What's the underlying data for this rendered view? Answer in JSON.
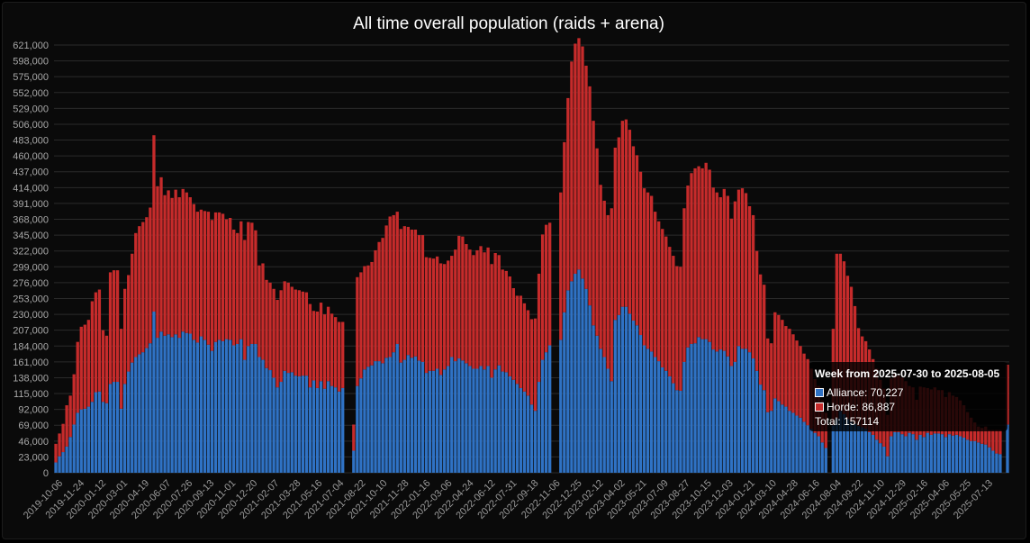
{
  "colors": {
    "background": "#0a0a0a",
    "alliance": "#2f72c4",
    "horde": "#c62b2b",
    "bar_border": "#000000",
    "text": "#ffffff",
    "tick_text": "#a8a8a8",
    "grid": "#2a2a2a"
  },
  "tooltip": {
    "title": "Week from 2025-07-30 to 2025-08-05",
    "alliance_label": "Alliance: 70,227",
    "horde_label": "Horde: 86,887",
    "total_label": "Total: 157114"
  },
  "chart_data": {
    "type": "bar",
    "stacked": true,
    "title": "All time overall population (raids + arena)",
    "xlabel": "",
    "ylabel": "",
    "ylim": [
      0,
      621000
    ],
    "yticks": [
      0,
      23000,
      46000,
      69000,
      92000,
      115000,
      138000,
      161000,
      184000,
      207000,
      230000,
      253000,
      276000,
      299000,
      322000,
      345000,
      368000,
      391000,
      414000,
      437000,
      460000,
      483000,
      506000,
      529000,
      552000,
      575000,
      598000,
      621000
    ],
    "ytick_labels": [
      "0",
      "23,000",
      "46,000",
      "69,000",
      "92,000",
      "115,000",
      "138,000",
      "161,000",
      "184,000",
      "207,000",
      "230,000",
      "253,000",
      "276,000",
      "299,000",
      "322,000",
      "345,000",
      "368,000",
      "391,000",
      "414,000",
      "437,000",
      "460,000",
      "483,000",
      "506,000",
      "529,000",
      "552,000",
      "575,000",
      "598,000",
      "621,000"
    ],
    "grid": true,
    "legend": "none",
    "x_tick_labels": [
      "2019-10-06",
      "2019-11-24",
      "2020-01-12",
      "2020-03-01",
      "2020-04-19",
      "2020-06-07",
      "2020-07-26",
      "2020-09-13",
      "2020-11-01",
      "2020-12-20",
      "2021-02-07",
      "2021-03-28",
      "2021-05-16",
      "2021-07-04",
      "2021-08-22",
      "2021-10-10",
      "2021-11-28",
      "2022-01-16",
      "2022-03-06",
      "2022-04-24",
      "2022-06-12",
      "2022-07-31",
      "2022-09-18",
      "2022-11-06",
      "2022-12-25",
      "2023-02-12",
      "2023-04-02",
      "2023-05-21",
      "2023-07-09",
      "2023-08-27",
      "2023-10-15",
      "2023-12-03",
      "2024-01-21",
      "2024-03-10",
      "2024-04-28",
      "2024-06-16",
      "2024-08-04",
      "2024-09-22",
      "2024-11-10",
      "2024-12-29",
      "2025-02-16",
      "2025-04-06",
      "2025-05-25",
      "2025-07-13"
    ],
    "series": [
      {
        "name": "Alliance",
        "values": [
          15000,
          24000,
          30000,
          38000,
          52000,
          70000,
          87000,
          92000,
          93000,
          96000,
          103000,
          117000,
          118000,
          103000,
          101000,
          129000,
          132000,
          132000,
          93000,
          129000,
          147000,
          160000,
          168000,
          172000,
          175000,
          181000,
          188000,
          234000,
          196000,
          205000,
          199000,
          201000,
          197000,
          201000,
          196000,
          205000,
          203000,
          202000,
          193000,
          189000,
          198000,
          193000,
          186000,
          177000,
          190000,
          193000,
          191000,
          194000,
          193000,
          185000,
          187000,
          194000,
          164000,
          184000,
          187000,
          187000,
          168000,
          164000,
          152000,
          149000,
          138000,
          124000,
          132000,
          148000,
          145000,
          146000,
          141000,
          140000,
          141000,
          141000,
          124000,
          134000,
          123000,
          133000,
          122000,
          133000,
          126000,
          124000,
          118000,
          123000,
          0,
          0,
          32000,
          126000,
          137000,
          150000,
          154000,
          156000,
          162000,
          162000,
          159000,
          167000,
          168000,
          175000,
          187000,
          160000,
          164000,
          171000,
          167000,
          169000,
          163000,
          161000,
          145000,
          148000,
          148000,
          151000,
          142000,
          150000,
          155000,
          168000,
          162000,
          166000,
          163000,
          159000,
          155000,
          151000,
          151000,
          155000,
          150000,
          155000,
          138000,
          150000,
          156000,
          147000,
          146000,
          140000,
          135000,
          129000,
          123000,
          118000,
          112000,
          99000,
          90000,
          132000,
          164000,
          175000,
          185000,
          0,
          0,
          193000,
          233000,
          265000,
          278000,
          289000,
          295000,
          282000,
          267000,
          243000,
          214000,
          199000,
          180000,
          168000,
          151000,
          133000,
          222000,
          229000,
          241000,
          241000,
          231000,
          221000,
          214000,
          200000,
          185000,
          180000,
          176000,
          168000,
          162000,
          153000,
          148000,
          140000,
          130000,
          120000,
          119000,
          161000,
          182000,
          187000,
          188000,
          197000,
          194000,
          194000,
          190000,
          179000,
          176000,
          179000,
          177000,
          169000,
          155000,
          161000,
          184000,
          180000,
          180000,
          175000,
          166000,
          148000,
          128000,
          120000,
          88000,
          90000,
          108000,
          104000,
          99000,
          96000,
          90000,
          87000,
          83000,
          80000,
          74000,
          69000,
          64000,
          58000,
          53000,
          44000,
          36000,
          0,
          69000,
          79000,
          90000,
          85000,
          78000,
          74000,
          71000,
          68000,
          66000,
          64000,
          59000,
          55000,
          48000,
          43000,
          38000,
          24000,
          53000,
          59000,
          59000,
          56000,
          53000,
          58000,
          56000,
          48000,
          55000,
          52000,
          58000,
          55000,
          57000,
          57000,
          56000,
          52000,
          56000,
          54000,
          55000,
          53000,
          51000,
          48000,
          46000,
          46000,
          44000,
          42000,
          41000,
          37000,
          32000,
          28000,
          27000,
          0,
          70000
        ]
      },
      {
        "name": "Horde",
        "values": [
          27000,
          33000,
          41000,
          60000,
          60000,
          73000,
          103000,
          120000,
          122000,
          126000,
          146000,
          145000,
          148000,
          104000,
          98000,
          162000,
          162000,
          162000,
          116000,
          138000,
          140000,
          158000,
          180000,
          186000,
          189000,
          190000,
          197000,
          256000,
          220000,
          224000,
          204000,
          209000,
          202000,
          210000,
          204000,
          207000,
          204000,
          198000,
          197000,
          190000,
          184000,
          187000,
          193000,
          190000,
          188000,
          185000,
          185000,
          174000,
          177000,
          168000,
          161000,
          171000,
          174000,
          180000,
          176000,
          165000,
          133000,
          140000,
          128000,
          127000,
          129000,
          127000,
          133000,
          130000,
          131000,
          124000,
          125000,
          125000,
          122000,
          121000,
          121000,
          101000,
          111000,
          114000,
          108000,
          108000,
          105000,
          102000,
          101000,
          96000,
          0,
          0,
          38000,
          158000,
          154000,
          150000,
          147000,
          150000,
          161000,
          173000,
          182000,
          192000,
          204000,
          199000,
          192000,
          194000,
          194000,
          186000,
          186000,
          184000,
          182000,
          184000,
          168000,
          164000,
          163000,
          163000,
          162000,
          153000,
          153000,
          147000,
          162000,
          178000,
          180000,
          173000,
          169000,
          165000,
          172000,
          174000,
          170000,
          172000,
          165000,
          169000,
          160000,
          148000,
          147000,
          145000,
          133000,
          128000,
          134000,
          128000,
          124000,
          124000,
          134000,
          157000,
          182000,
          185000,
          178000,
          0,
          0,
          214000,
          247000,
          279000,
          319000,
          334000,
          336000,
          337000,
          324000,
          318000,
          297000,
          272000,
          238000,
          227000,
          223000,
          251000,
          250000,
          258000,
          270000,
          272000,
          267000,
          253000,
          247000,
          237000,
          228000,
          227000,
          226000,
          211000,
          203000,
          201000,
          195000,
          188000,
          185000,
          180000,
          180000,
          223000,
          235000,
          248000,
          254000,
          248000,
          248000,
          256000,
          250000,
          235000,
          231000,
          221000,
          235000,
          233000,
          214000,
          233000,
          227000,
          233000,
          226000,
          212000,
          208000,
          174000,
          160000,
          153000,
          107000,
          98000,
          125000,
          125000,
          123000,
          117000,
          119000,
          114000,
          109000,
          104000,
          99000,
          96000,
          87000,
          78000,
          73000,
          61000,
          51000,
          0,
          140000,
          239000,
          228000,
          222000,
          208000,
          196000,
          171000,
          142000,
          132000,
          127000,
          120000,
          110000,
          103000,
          92000,
          84000,
          60000,
          84000,
          84000,
          82000,
          82000,
          80000,
          68000,
          68000,
          58000,
          70000,
          72000,
          65000,
          66000,
          67000,
          63000,
          64000,
          58000,
          61000,
          58000,
          55000,
          52000,
          47000,
          40000,
          34000,
          27000,
          23000,
          23000,
          26000,
          25000,
          30000,
          34000,
          35000,
          0,
          86887
        ]
      }
    ]
  }
}
